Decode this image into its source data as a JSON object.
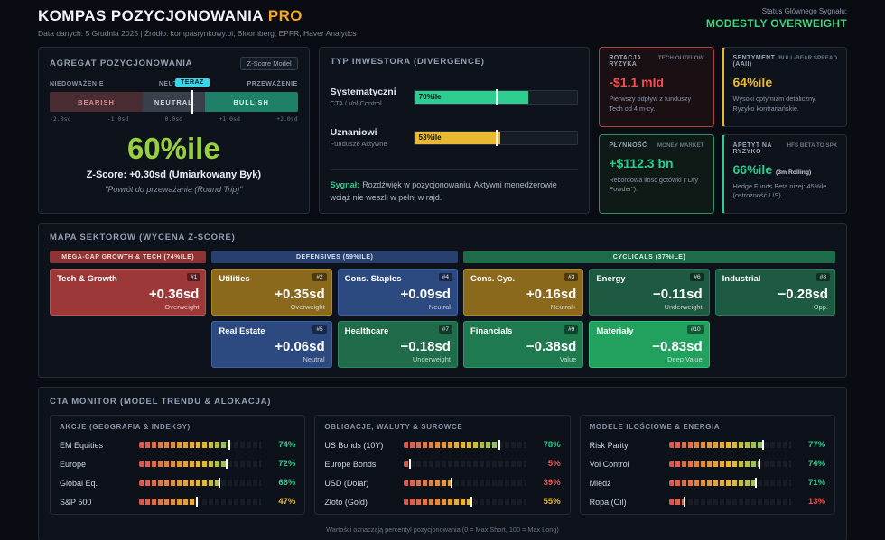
{
  "colors": {
    "lime": "#97d13d",
    "green": "#2ecc8f",
    "amber": "#eab831",
    "red": "#ef5350"
  },
  "header": {
    "title": "KOMPAS POZYCJONOWANIA",
    "title_badge": "PRO",
    "subtitle": "Data danych: 5 Grudnia 2025 | Źródło: kompasrynkowy.pl, Bloomberg, EPFR, Haver Analytics",
    "status_label": "Status Głównego Sygnału:",
    "status_value": "MODESTLY OVERWEIGHT"
  },
  "aggregate": {
    "title": "AGREGAT POZYCJONOWANIA",
    "badge": "Z-Score Model",
    "labels": {
      "left": "NIEDOWAŻENIE",
      "center": "NEUTRAL",
      "right": "PRZEWAŻENIE",
      "now": "TERAZ"
    },
    "zones": [
      "BEARISH",
      "NEUTRAL",
      "BULLISH"
    ],
    "scale": [
      "-2.0sd",
      "-1.0sd",
      "0.0sd",
      "+1.0sd",
      "+2.0sd"
    ],
    "marker_pct": 57.5,
    "percentile": "60%ile",
    "zscore_line": "Z-Score: +0.30sd (Umiarkowany Byk)",
    "note": "\"Powrót do przeważania (Round Trip)\""
  },
  "investor": {
    "title": "TYP INWESTORA (DIVERGENCE)",
    "rows": [
      {
        "name": "Systematyczni",
        "sub": "CTA / Vol Control",
        "value": "70%ile",
        "pct": 70,
        "color": "#2ecc8f"
      },
      {
        "name": "Uznaniowi",
        "sub": "Fundusze Aktywne",
        "value": "53%ile",
        "pct": 53,
        "color": "#e8b931"
      }
    ],
    "signal_label": "Sygnał:",
    "signal_text": "Rozdźwięk w pozycjonowaniu. Aktywni menedżerowie wciąż nie weszli w pełni w rajd."
  },
  "cards": [
    {
      "title": "ROTACJA RYZYKA",
      "tag": "TECH OUTFLOW",
      "value": "-$1.1 mld",
      "value_color": "#ef5350",
      "desc": "Pierwszy odpływ z funduszy Tech od 4 m-cy."
    },
    {
      "title": "SENTYMENT (AAII)",
      "tag": "BULL-BEAR SPREAD",
      "value": "64%ile",
      "value_color": "#eab831",
      "desc": "Wysoki optymizm detaliczny. Ryzyko kontrariańskie."
    },
    {
      "title": "PŁYNNOŚĆ",
      "tag": "MONEY MARKET",
      "value": "+$112.3 bn",
      "value_color": "#2ecc8f",
      "desc": "Rekordowa ilość gotówki (\"Dry Powder\")."
    },
    {
      "title": "APETYT NA RYZYKO",
      "tag": "HFS BETA TO SPX",
      "value": "66%ile",
      "value_suffix": "(3m Rolling)",
      "value_color": "#2ecc8f",
      "desc": "Hedge Funds Beta niżej: 45%ile (ostrożność L/S)."
    }
  ],
  "sectors": {
    "title": "MAPA SEKTORÓW (WYCENA Z-SCORE)",
    "groups": [
      {
        "label": "MEGA-CAP GROWTH & TECH (74%ILE)",
        "bg": "#8f3434"
      },
      {
        "label": "DEFENSIVES (59%ILE)",
        "bg": "#27406e"
      },
      {
        "label": "CYCLICALS (37%ILE)",
        "bg": "#1e6b4a"
      }
    ],
    "tiles": [
      {
        "name": "Tech & Growth",
        "rank": "#1",
        "value": "+0.36sd",
        "sub": "Overweight",
        "bg": "#9c3838",
        "border": "#c05050"
      },
      {
        "name": "Utilities",
        "rank": "#2",
        "value": "+0.35sd",
        "sub": "Overweight",
        "bg": "#8a681c",
        "border": "#b08a2a"
      },
      {
        "name": "Cons. Staples",
        "rank": "#4",
        "value": "+0.09sd",
        "sub": "Neutral",
        "bg": "#2c4a80",
        "border": "#3d62a8"
      },
      {
        "name": "Cons. Cyc.",
        "rank": "#3",
        "value": "+0.16sd",
        "sub": "Neutral+",
        "bg": "#8a681c",
        "border": "#b08a2a"
      },
      {
        "name": "Energy",
        "rank": "#6",
        "value": "−0.11sd",
        "sub": "Underweight",
        "bg": "#1d5a41",
        "border": "#2a7a58"
      },
      {
        "name": "Industrial",
        "rank": "#8",
        "value": "−0.28sd",
        "sub": "Opp.",
        "bg": "#1d5a41",
        "border": "#2a7a58"
      },
      {
        "name": "Real Estate",
        "rank": "#5",
        "value": "+0.06sd",
        "sub": "Neutral",
        "bg": "#2c4a80",
        "border": "#3d62a8"
      },
      {
        "name": "Healthcare",
        "rank": "#7",
        "value": "−0.18sd",
        "sub": "Underweight",
        "bg": "#1f6b4a",
        "border": "#2a8a60"
      },
      {
        "name": "Financials",
        "rank": "#9",
        "value": "−0.38sd",
        "sub": "Value",
        "bg": "#1f7a50",
        "border": "#2a9c68"
      },
      {
        "name": "Materiały",
        "rank": "#10",
        "value": "−0.83sd",
        "sub": "Deep Value",
        "bg": "#21a05e",
        "border": "#30c47a"
      }
    ]
  },
  "cta": {
    "title": "CTA MONITOR (MODEL TRENDU & ALOKACJA)",
    "panels": [
      {
        "title": "AKCJE (GEOGRAFIA & INDEKSY)",
        "rows": [
          {
            "label": "EM Equities",
            "pct": 74,
            "pct_label": "74%",
            "color": "#2ecc8f"
          },
          {
            "label": "Europe",
            "pct": 72,
            "pct_label": "72%",
            "color": "#2ecc8f"
          },
          {
            "label": "Global Eq.",
            "pct": 66,
            "pct_label": "66%",
            "color": "#2ecc8f"
          },
          {
            "label": "S&P 500",
            "pct": 47,
            "pct_label": "47%",
            "color": "#eab831"
          }
        ]
      },
      {
        "title": "OBLIGACJE, WALUTY & SUROWCE",
        "rows": [
          {
            "label": "US Bonds (10Y)",
            "pct": 78,
            "pct_label": "78%",
            "color": "#2ecc8f"
          },
          {
            "label": "Europe Bonds",
            "pct": 5,
            "pct_label": "5%",
            "color": "#ef5350"
          },
          {
            "label": "USD (Dolar)",
            "pct": 39,
            "pct_label": "39%",
            "color": "#ef5350"
          },
          {
            "label": "Złoto (Gold)",
            "pct": 55,
            "pct_label": "55%",
            "color": "#eab831"
          }
        ]
      },
      {
        "title": "MODELE ILOŚCIOWE & ENERGIA",
        "rows": [
          {
            "label": "Risk Parity",
            "pct": 77,
            "pct_label": "77%",
            "color": "#2ecc8f"
          },
          {
            "label": "Vol Control",
            "pct": 74,
            "pct_label": "74%",
            "color": "#2ecc8f"
          },
          {
            "label": "Miedź",
            "pct": 71,
            "pct_label": "71%",
            "color": "#2ecc8f"
          },
          {
            "label": "Ropa (Oil)",
            "pct": 13,
            "pct_label": "13%",
            "color": "#ef5350"
          }
        ]
      }
    ],
    "footnote": "Wartości oznaczają percentyl pozycjonowania (0 = Max Short, 100 = Max Long)"
  }
}
